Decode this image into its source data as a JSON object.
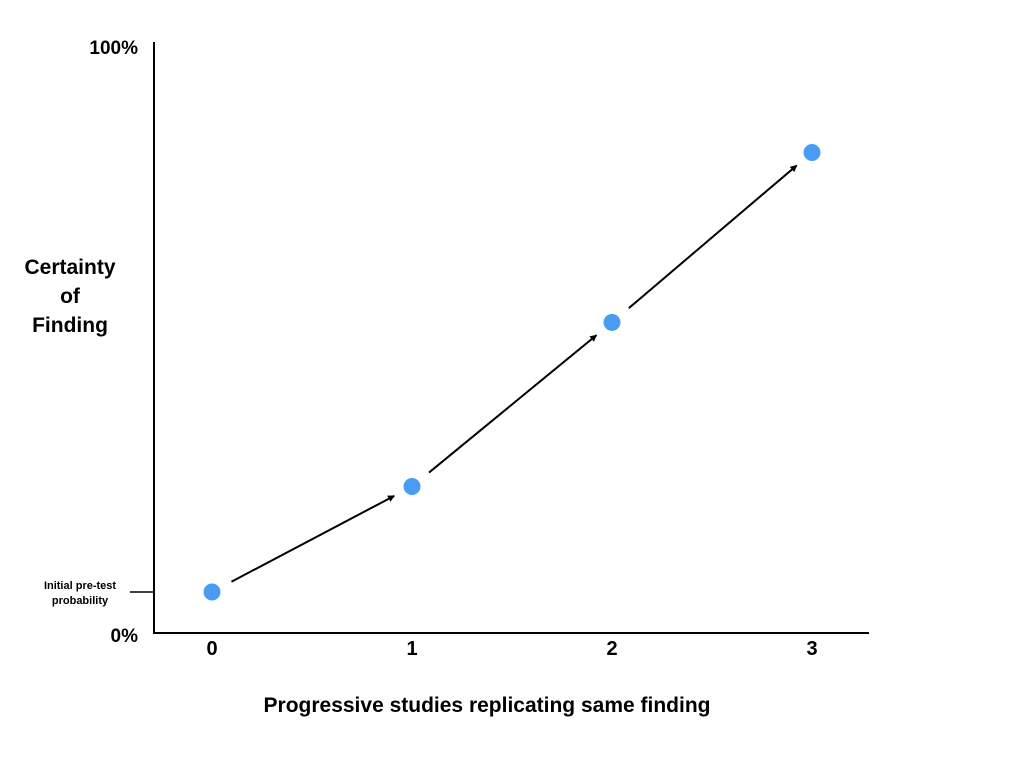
{
  "chart_data": {
    "type": "scatter",
    "title": "",
    "xlabel": "Progressive studies replicating same finding",
    "ylabel_lines": [
      "Certainty",
      "of",
      "Finding"
    ],
    "y_tick_labels": [
      "100%",
      "0%"
    ],
    "ylim": [
      0,
      100
    ],
    "categories": [
      "0",
      "1",
      "2",
      "3"
    ],
    "series": [
      {
        "values": [
          7,
          25,
          53,
          82
        ]
      }
    ],
    "arrows_between_points": true,
    "annotation": {
      "lines": [
        "Initial pre-test",
        "probability"
      ],
      "y": 7
    },
    "grid": false,
    "legend": "none",
    "point_color": "#4a9cf2",
    "axis_color": "#000000"
  }
}
